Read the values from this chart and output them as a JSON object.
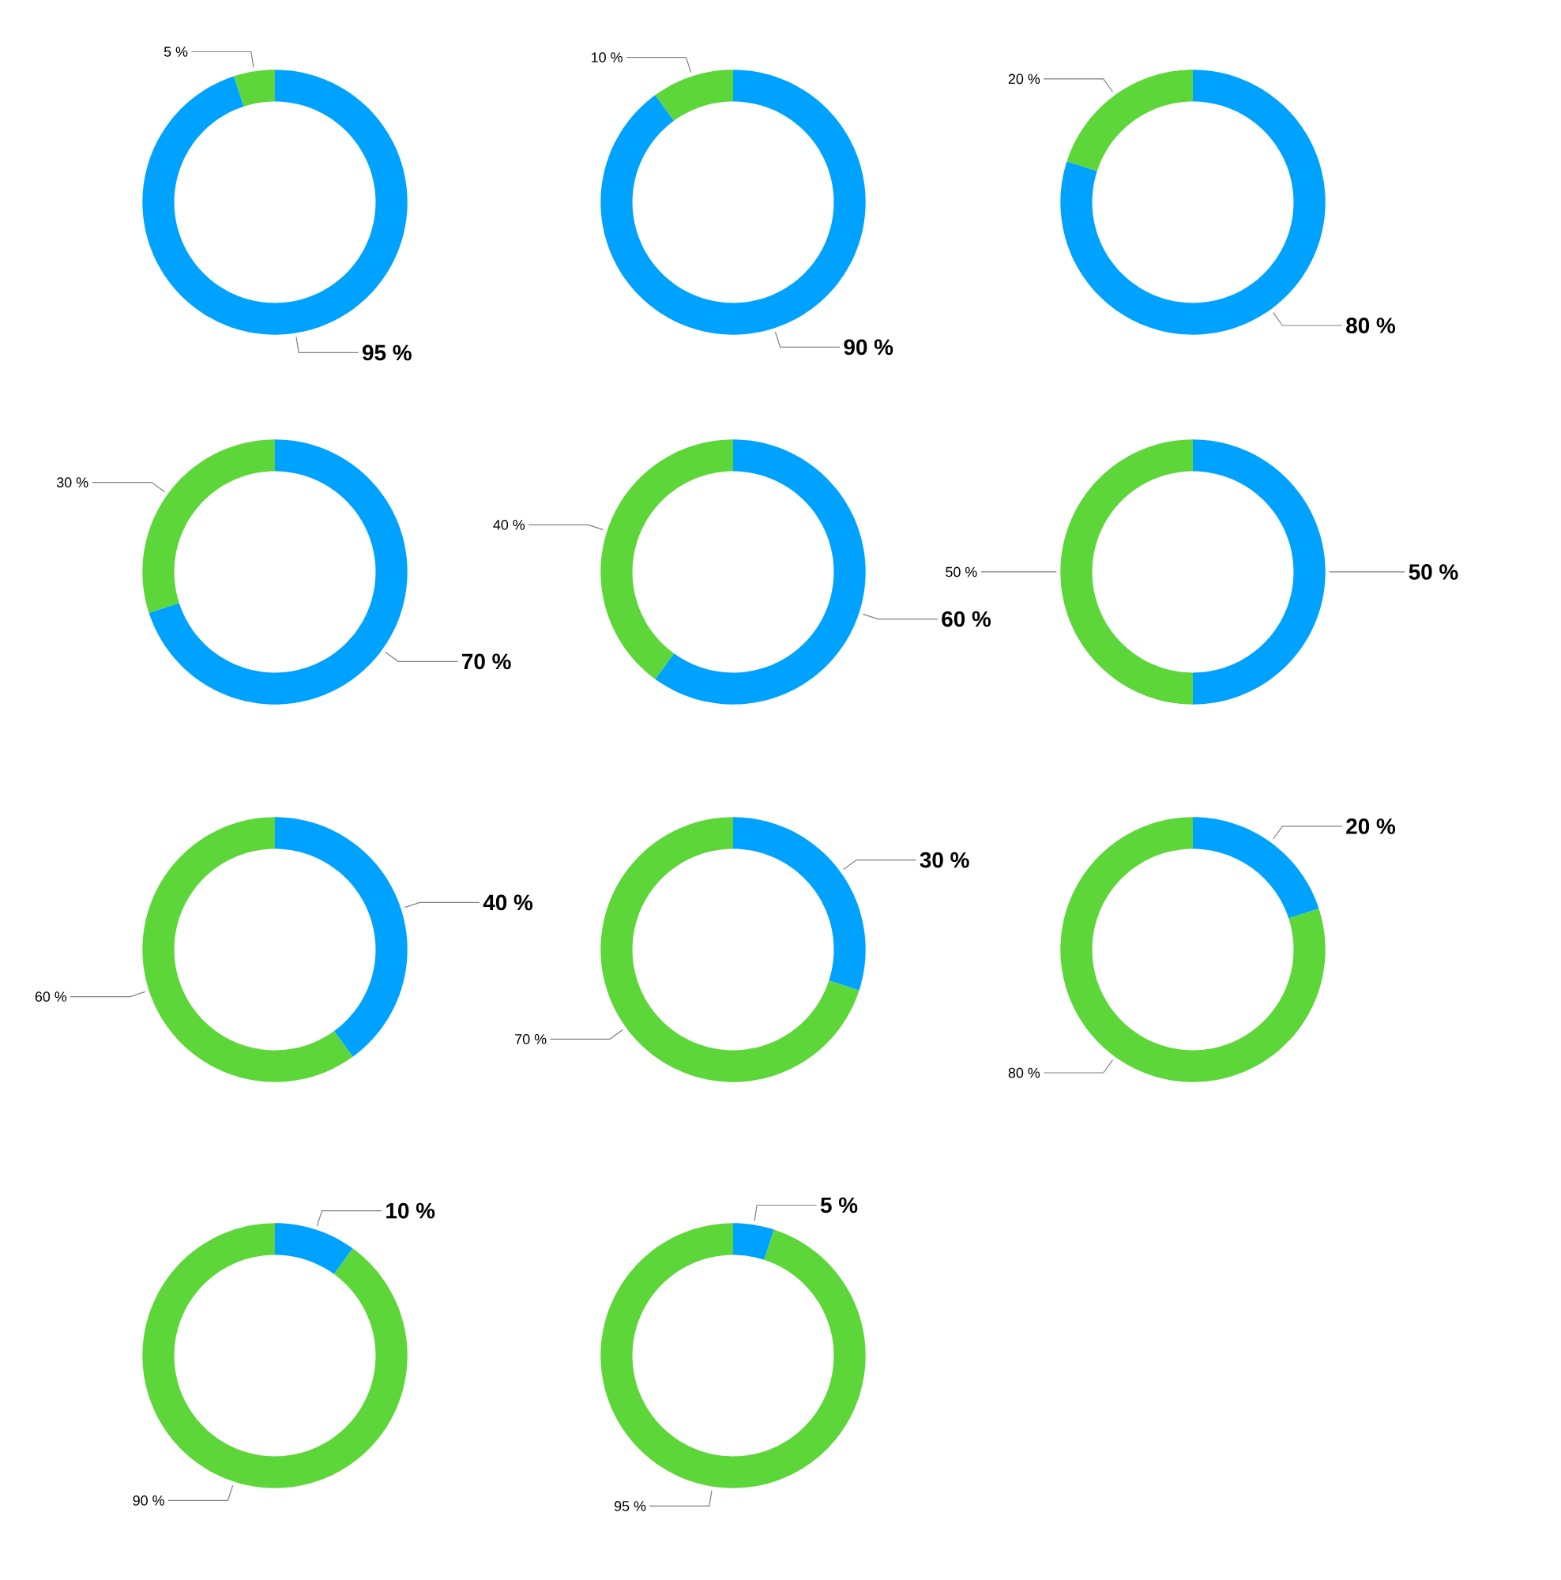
{
  "chart_data": [
    {
      "type": "donut",
      "categories": [
        null,
        null
      ],
      "values": [
        95,
        5
      ],
      "colors": [
        "#00a2ff",
        "#5dd639"
      ],
      "value_labels": [
        "95 %",
        "5 %"
      ]
    },
    {
      "type": "donut",
      "categories": [
        null,
        null
      ],
      "values": [
        90,
        10
      ],
      "colors": [
        "#00a2ff",
        "#5dd639"
      ],
      "value_labels": [
        "90 %",
        "10 %"
      ]
    },
    {
      "type": "donut",
      "categories": [
        null,
        null
      ],
      "values": [
        80,
        20
      ],
      "colors": [
        "#00a2ff",
        "#5dd639"
      ],
      "value_labels": [
        "80 %",
        "20 %"
      ]
    },
    {
      "type": "donut",
      "categories": [
        null,
        null
      ],
      "values": [
        70,
        30
      ],
      "colors": [
        "#00a2ff",
        "#5dd639"
      ],
      "value_labels": [
        "70 %",
        "30 %"
      ]
    },
    {
      "type": "donut",
      "categories": [
        null,
        null
      ],
      "values": [
        60,
        40
      ],
      "colors": [
        "#00a2ff",
        "#5dd639"
      ],
      "value_labels": [
        "60 %",
        "40 %"
      ]
    },
    {
      "type": "donut",
      "categories": [
        null,
        null
      ],
      "values": [
        50,
        50
      ],
      "colors": [
        "#00a2ff",
        "#5dd639"
      ],
      "value_labels": [
        "50 %",
        "50 %"
      ]
    },
    {
      "type": "donut",
      "categories": [
        null,
        null
      ],
      "values": [
        40,
        60
      ],
      "colors": [
        "#00a2ff",
        "#5dd639"
      ],
      "value_labels": [
        "40 %",
        "60 %"
      ]
    },
    {
      "type": "donut",
      "categories": [
        null,
        null
      ],
      "values": [
        30,
        70
      ],
      "colors": [
        "#00a2ff",
        "#5dd639"
      ],
      "value_labels": [
        "30 %",
        "70 %"
      ]
    },
    {
      "type": "donut",
      "categories": [
        null,
        null
      ],
      "values": [
        20,
        80
      ],
      "colors": [
        "#00a2ff",
        "#5dd639"
      ],
      "value_labels": [
        "20 %",
        "80 %"
      ]
    },
    {
      "type": "donut",
      "categories": [
        null,
        null
      ],
      "values": [
        10,
        90
      ],
      "colors": [
        "#00a2ff",
        "#5dd639"
      ],
      "value_labels": [
        "10 %",
        "90 %"
      ]
    },
    {
      "type": "donut",
      "categories": [
        null,
        null
      ],
      "values": [
        5,
        95
      ],
      "colors": [
        "#00a2ff",
        "#5dd639"
      ],
      "value_labels": [
        "5 %",
        "95 %"
      ]
    }
  ]
}
